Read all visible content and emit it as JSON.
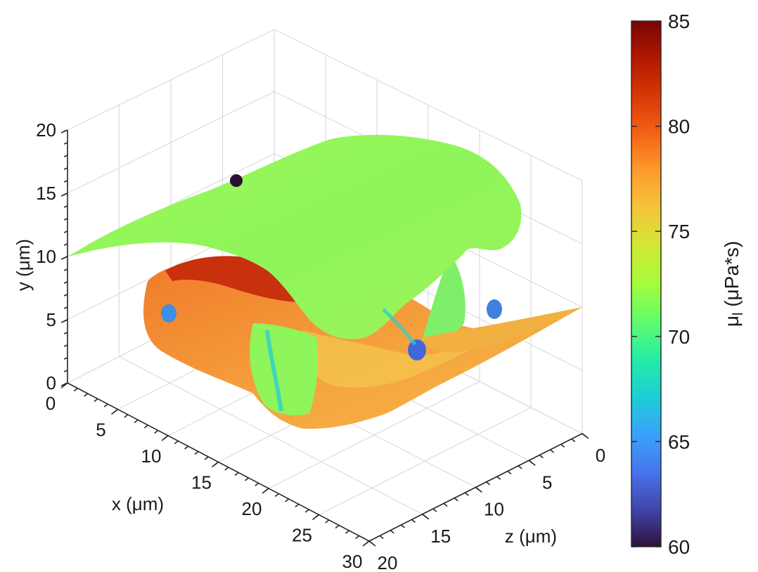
{
  "chart_data": {
    "type": "surface3d",
    "title": "",
    "xlabel": "x (μm)",
    "ylabel": "y (μm)",
    "zlabel": "z (μm)",
    "x_ticks": [
      "0",
      "5",
      "10",
      "15",
      "20",
      "25",
      "30"
    ],
    "y_ticks": [
      "0",
      "5",
      "10",
      "15",
      "20"
    ],
    "z_ticks": [
      "0",
      "5",
      "10",
      "15",
      "20"
    ],
    "xlim": [
      0,
      30
    ],
    "ylim": [
      0,
      20
    ],
    "zlim": [
      0,
      20
    ],
    "grid": true,
    "colorbar": {
      "label": "μ",
      "label_subscript": "l",
      "label_suffix": " (μPa*s)",
      "ticks": [
        "60",
        "65",
        "70",
        "75",
        "80",
        "85"
      ],
      "range": [
        60,
        85
      ],
      "colormap": "turbo",
      "colors": [
        "#30123b",
        "#4145ab",
        "#4675ed",
        "#39a2fc",
        "#1bcfd4",
        "#24eca6",
        "#61fc6c",
        "#a4fc3b",
        "#d1e834",
        "#f3c63a",
        "#fe9b2d",
        "#f36315",
        "#d93806",
        "#b11901",
        "#7a0402"
      ]
    },
    "surface_colors": {
      "dominant": "#8ef55a",
      "lower_shell": "#f39a3a",
      "inner_red": "#c8260c",
      "low_spots": "#3f7fe0",
      "min_marker": "#2a1033"
    }
  }
}
